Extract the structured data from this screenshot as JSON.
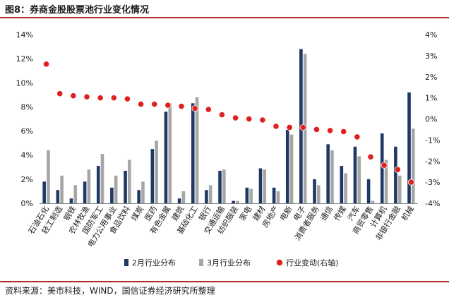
{
  "header": {
    "title": "图8：券商金股股票池行业变化情况"
  },
  "footer": {
    "source": "资料来源：美市科技，WIND，国信证券经济研究所整理"
  },
  "colors": {
    "feb": "#1f3864",
    "mar": "#a6a6a6",
    "change": "#e02020",
    "rule": "#b22a2a"
  },
  "chart_data": {
    "type": "bar",
    "title": "券商金股股票池行业变化情况",
    "categories": [
      "石油石化",
      "轻工制造",
      "钢铁",
      "农林牧渔",
      "国防军工",
      "电力公用事业",
      "食品饮料",
      "煤炭",
      "医药",
      "有色金属",
      "建筑",
      "基础化工",
      "银行",
      "交通运输",
      "纺织服装",
      "家电",
      "建材",
      "房地产",
      "电新",
      "电子",
      "消费者服务",
      "通信",
      "传媒",
      "汽车",
      "商贸零售",
      "计算机",
      "非银行金融",
      "机械"
    ],
    "series": [
      {
        "name": "2月行业分布",
        "axis": "left",
        "kind": "bar",
        "values": [
          1.8,
          1.1,
          0.4,
          1.8,
          3.1,
          1.3,
          2.7,
          1.1,
          4.5,
          7.6,
          0.4,
          8.3,
          1.1,
          2.7,
          0.2,
          1.3,
          2.9,
          1.3,
          6.1,
          12.8,
          2.0,
          4.9,
          3.1,
          4.7,
          2.0,
          5.8,
          4.7,
          9.2
        ]
      },
      {
        "name": "3月行业分布",
        "axis": "left",
        "kind": "bar",
        "values": [
          4.4,
          2.3,
          1.5,
          2.8,
          4.1,
          2.3,
          3.6,
          1.8,
          5.2,
          8.3,
          1.0,
          8.8,
          1.5,
          2.8,
          0.2,
          1.2,
          2.8,
          1.0,
          5.7,
          12.4,
          1.5,
          4.4,
          2.5,
          3.9,
          0.2,
          3.6,
          2.3,
          6.2
        ]
      },
      {
        "name": "行业变动(右轴)",
        "axis": "right",
        "kind": "scatter",
        "values": [
          2.6,
          1.2,
          1.1,
          1.05,
          1.0,
          1.0,
          0.95,
          0.7,
          0.7,
          0.65,
          0.6,
          0.5,
          0.45,
          0.2,
          0.05,
          0.0,
          -0.05,
          -0.35,
          -0.4,
          -0.4,
          -0.5,
          -0.55,
          -0.6,
          -0.85,
          -1.8,
          -2.2,
          -2.4,
          -3.0
        ]
      }
    ],
    "y_left": {
      "min": 0,
      "max": 14,
      "ticks": [
        "0%",
        "2%",
        "4%",
        "6%",
        "8%",
        "10%",
        "12%",
        "14%"
      ],
      "tick_values": [
        0,
        2,
        4,
        6,
        8,
        10,
        12,
        14
      ]
    },
    "y_right": {
      "min": -4,
      "max": 4,
      "ticks": [
        "-4%",
        "-3%",
        "-2%",
        "-1%",
        "0%",
        "1%",
        "2%",
        "3%",
        "4%"
      ],
      "tick_values": [
        -4,
        -3,
        -2,
        -1,
        0,
        1,
        2,
        3,
        4
      ]
    },
    "legend": {
      "placement": "bottom",
      "labels": [
        "2月行业分布",
        "3月行业分布",
        "行业变动(右轴)"
      ]
    },
    "grid": false
  }
}
